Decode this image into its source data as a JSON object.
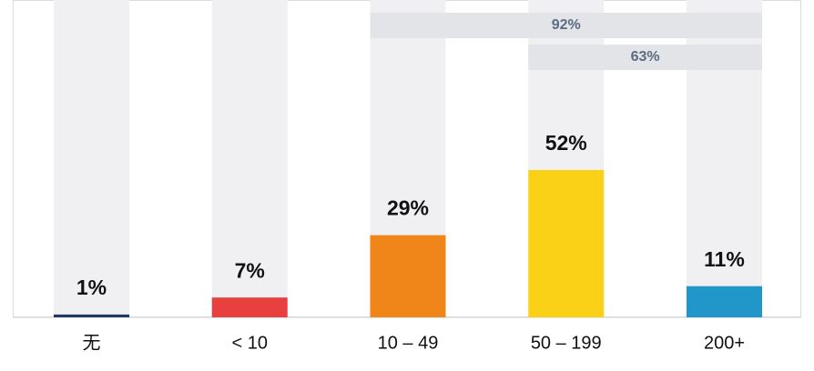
{
  "chart_data": {
    "type": "bar",
    "categories": [
      "无",
      "< 10",
      "10 – 49",
      "50 – 199",
      "200+"
    ],
    "values": [
      1,
      7,
      29,
      52,
      11
    ],
    "value_labels": [
      "1%",
      "7%",
      "29%",
      "52%",
      "11%"
    ],
    "colors": [
      "#1f3864",
      "#e8403e",
      "#f08519",
      "#fbd118",
      "#2196c9"
    ],
    "ylim": [
      0,
      112
    ],
    "annotations": [
      {
        "text": "92%",
        "start": "10 – 49",
        "end": "200+"
      },
      {
        "text": "63%",
        "start": "50 – 199",
        "end": "200+"
      }
    ]
  }
}
